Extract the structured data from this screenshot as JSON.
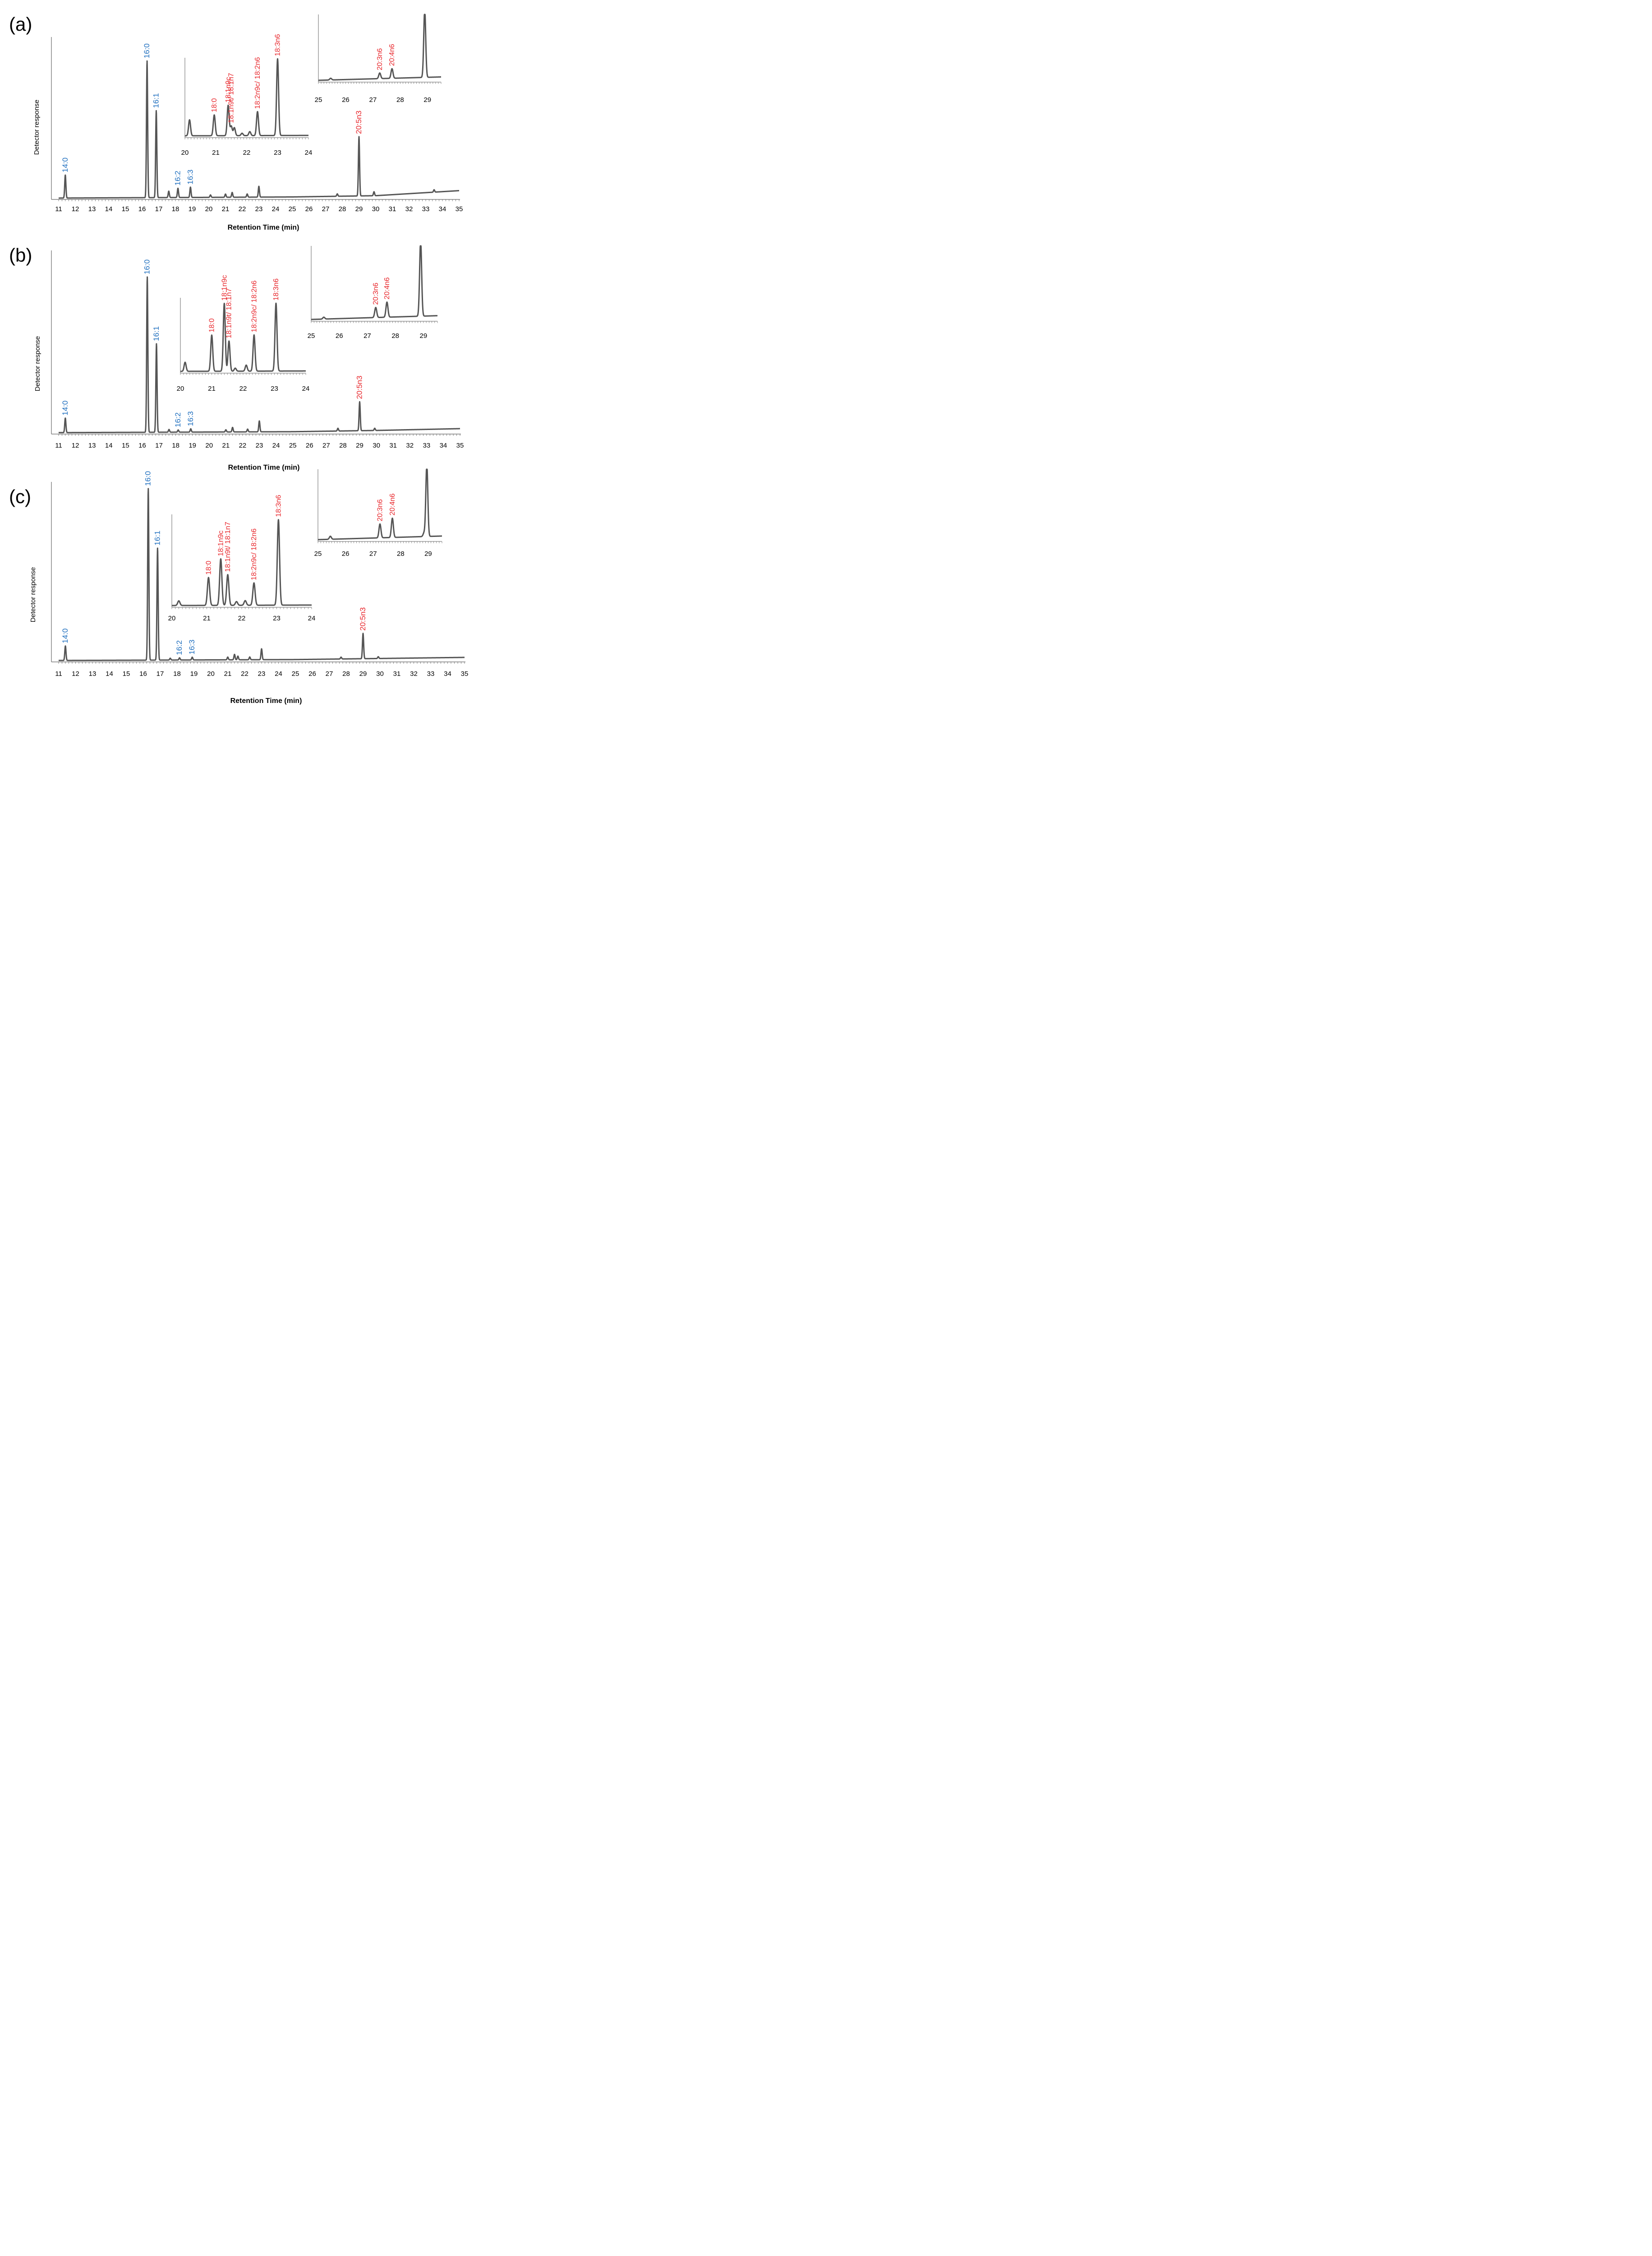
{
  "colors": {
    "trace": "#555555",
    "axis": "#666666",
    "saturated_label": "#1f6fbf",
    "unsaturated_label": "#e8262b",
    "text": "#000000"
  },
  "chart_data": [
    {
      "type": "line",
      "panel_label": "(a)",
      "xlabel": "Retention Time (min)",
      "ylabel": "Detector response",
      "xlim": [
        11,
        35
      ],
      "xticks": [
        "11",
        "12",
        "13",
        "14",
        "15",
        "16",
        "17",
        "18",
        "19",
        "20",
        "21",
        "22",
        "23",
        "24",
        "25",
        "26",
        "27",
        "28",
        "29",
        "30",
        "31",
        "32",
        "33",
        "34",
        "35"
      ],
      "baseline": [
        [
          11,
          0.3
        ],
        [
          25,
          1.0
        ],
        [
          30,
          1.8
        ],
        [
          35,
          5.0
        ]
      ],
      "peaks": [
        {
          "x": 11.4,
          "y": 14.5,
          "label": "14:0",
          "group": "saturated"
        },
        {
          "x": 16.3,
          "y": 86.5,
          "label": "16:0",
          "group": "saturated"
        },
        {
          "x": 16.85,
          "y": 55.0,
          "label": "16:1",
          "group": "saturated"
        },
        {
          "x": 17.6,
          "y": 4.0
        },
        {
          "x": 18.15,
          "y": 5.8,
          "label": "16:2",
          "group": "saturated"
        },
        {
          "x": 18.9,
          "y": 6.5,
          "label": "16:3",
          "group": "saturated"
        },
        {
          "x": 20.1,
          "y": 1.5
        },
        {
          "x": 21.0,
          "y": 2.0
        },
        {
          "x": 21.4,
          "y": 3.0
        },
        {
          "x": 22.3,
          "y": 2.0
        },
        {
          "x": 23.0,
          "y": 6.8
        },
        {
          "x": 27.7,
          "y": 1.5
        },
        {
          "x": 29.0,
          "y": 37.5,
          "label": "20:5n3",
          "group": "unsaturated"
        },
        {
          "x": 29.9,
          "y": 2.5
        },
        {
          "x": 33.5,
          "y": 1.5
        }
      ],
      "insets": [
        {
          "xlim": [
            20,
            24
          ],
          "xticks": [
            "20",
            "21",
            "22",
            "23",
            "24"
          ],
          "peaks": [
            {
              "x": 20.15,
              "y": 20
            },
            {
              "x": 20.95,
              "y": 26,
              "label": "18:0",
              "group": "unsaturated"
            },
            {
              "x": 21.4,
              "y": 38,
              "label": "18:1n9c",
              "group": "unsaturated"
            },
            {
              "x": 21.5,
              "y": 12,
              "label": "18:1n9t/ 18:1n7",
              "group": "unsaturated"
            },
            {
              "x": 21.6,
              "y": 10
            },
            {
              "x": 21.85,
              "y": 3
            },
            {
              "x": 22.1,
              "y": 5
            },
            {
              "x": 22.35,
              "y": 30,
              "label": "18:2n9c/ 18:2n6",
              "group": "unsaturated"
            },
            {
              "x": 23.0,
              "y": 96,
              "label": "18:3n6",
              "group": "unsaturated"
            }
          ]
        },
        {
          "xlim": [
            25,
            29.5
          ],
          "xticks": [
            "25",
            "26",
            "27",
            "28",
            "29"
          ],
          "peaks": [
            {
              "x": 25.45,
              "y": 3
            },
            {
              "x": 27.25,
              "y": 10,
              "label": "20:3n6",
              "group": "unsaturated"
            },
            {
              "x": 27.7,
              "y": 17,
              "label": "20:4n6",
              "group": "unsaturated"
            },
            {
              "x": 28.9,
              "y": 120
            }
          ]
        }
      ]
    },
    {
      "type": "line",
      "panel_label": "(b)",
      "xlabel": "Retention Time (min)",
      "ylabel": "Detector response",
      "xlim": [
        11,
        35
      ],
      "xticks": [
        "11",
        "12",
        "13",
        "14",
        "15",
        "16",
        "17",
        "18",
        "19",
        "20",
        "21",
        "22",
        "23",
        "24",
        "25",
        "26",
        "27",
        "28",
        "29",
        "30",
        "31",
        "32",
        "33",
        "34",
        "35"
      ],
      "baseline": [
        [
          11,
          0.3
        ],
        [
          25,
          0.8
        ],
        [
          30,
          1.5
        ],
        [
          35,
          2.5
        ]
      ],
      "peaks": [
        {
          "x": 11.4,
          "y": 8.0,
          "label": "14:0",
          "group": "saturated"
        },
        {
          "x": 16.3,
          "y": 86.0,
          "label": "16:0",
          "group": "saturated"
        },
        {
          "x": 16.85,
          "y": 49.0,
          "label": "16:1",
          "group": "saturated"
        },
        {
          "x": 17.6,
          "y": 1.5
        },
        {
          "x": 18.15,
          "y": 1.2,
          "label": "16:2",
          "group": "saturated"
        },
        {
          "x": 18.9,
          "y": 1.8,
          "label": "16:3",
          "group": "saturated"
        },
        {
          "x": 21.0,
          "y": 1.2
        },
        {
          "x": 21.4,
          "y": 2.5
        },
        {
          "x": 22.3,
          "y": 1.5
        },
        {
          "x": 23.0,
          "y": 6.0
        },
        {
          "x": 27.7,
          "y": 1.5
        },
        {
          "x": 29.0,
          "y": 16.0,
          "label": "20:5n3",
          "group": "unsaturated"
        },
        {
          "x": 29.9,
          "y": 1.2
        }
      ],
      "insets": [
        {
          "xlim": [
            20,
            24
          ],
          "xticks": [
            "20",
            "21",
            "22",
            "23",
            "24"
          ],
          "peaks": [
            {
              "x": 20.15,
              "y": 12
            },
            {
              "x": 21.0,
              "y": 48,
              "label": "18:0",
              "group": "unsaturated"
            },
            {
              "x": 21.4,
              "y": 90,
              "label": "18:1n9c",
              "group": "unsaturated"
            },
            {
              "x": 21.55,
              "y": 40,
              "label": "18:1n9t/ 18:1n7",
              "group": "unsaturated"
            },
            {
              "x": 21.75,
              "y": 4
            },
            {
              "x": 22.1,
              "y": 8
            },
            {
              "x": 22.35,
              "y": 48,
              "label": "18:2n9c/ 18:2n6",
              "group": "unsaturated"
            },
            {
              "x": 23.05,
              "y": 90,
              "label": "18:3n6",
              "group": "unsaturated"
            }
          ]
        },
        {
          "xlim": [
            25,
            29.5
          ],
          "xticks": [
            "25",
            "26",
            "27",
            "28",
            "29"
          ],
          "peaks": [
            {
              "x": 25.45,
              "y": 3
            },
            {
              "x": 27.3,
              "y": 16,
              "label": "20:3n6",
              "group": "unsaturated"
            },
            {
              "x": 27.7,
              "y": 24,
              "label": "20:4n6",
              "group": "unsaturated"
            },
            {
              "x": 28.9,
              "y": 120
            }
          ]
        }
      ]
    },
    {
      "type": "line",
      "panel_label": "(c)",
      "xlabel": "Retention Time (min)",
      "ylabel": "Detector response",
      "xlim": [
        11,
        35
      ],
      "xticks": [
        "11",
        "12",
        "13",
        "14",
        "15",
        "16",
        "17",
        "18",
        "19",
        "20",
        "21",
        "22",
        "23",
        "24",
        "25",
        "26",
        "27",
        "28",
        "29",
        "30",
        "31",
        "32",
        "33",
        "34",
        "35"
      ],
      "baseline": [
        [
          11,
          0.3
        ],
        [
          25,
          0.8
        ],
        [
          30,
          1.4
        ],
        [
          35,
          2.0
        ]
      ],
      "peaks": [
        {
          "x": 11.4,
          "y": 8.0,
          "label": "14:0",
          "group": "saturated"
        },
        {
          "x": 16.3,
          "y": 95.0,
          "label": "16:0",
          "group": "saturated"
        },
        {
          "x": 16.85,
          "y": 62.0,
          "label": "16:1",
          "group": "saturated"
        },
        {
          "x": 17.6,
          "y": 1.0
        },
        {
          "x": 18.15,
          "y": 1.2,
          "label": "16:2",
          "group": "saturated"
        },
        {
          "x": 18.9,
          "y": 1.5,
          "label": "16:3",
          "group": "saturated"
        },
        {
          "x": 21.0,
          "y": 1.5
        },
        {
          "x": 21.4,
          "y": 3.0
        },
        {
          "x": 21.6,
          "y": 2.0
        },
        {
          "x": 22.3,
          "y": 1.5
        },
        {
          "x": 23.0,
          "y": 6.0
        },
        {
          "x": 27.7,
          "y": 1.0
        },
        {
          "x": 29.0,
          "y": 14.0,
          "label": "20:5n3",
          "group": "unsaturated"
        },
        {
          "x": 29.9,
          "y": 1.0
        }
      ],
      "insets": [
        {
          "xlim": [
            20,
            24
          ],
          "xticks": [
            "20",
            "21",
            "22",
            "23",
            "24"
          ],
          "peaks": [
            {
              "x": 20.2,
              "y": 5
            },
            {
              "x": 21.05,
              "y": 30,
              "label": "18:0",
              "group": "unsaturated"
            },
            {
              "x": 21.4,
              "y": 50,
              "label": "18:1n9c",
              "group": "unsaturated"
            },
            {
              "x": 21.6,
              "y": 33,
              "label": "18:1n9t/ 18:1n7",
              "group": "unsaturated"
            },
            {
              "x": 21.85,
              "y": 4
            },
            {
              "x": 22.1,
              "y": 5
            },
            {
              "x": 22.35,
              "y": 24,
              "label": "18:2n9c/ 18:2n6",
              "group": "unsaturated"
            },
            {
              "x": 23.05,
              "y": 92,
              "label": "18:3n6",
              "group": "unsaturated"
            }
          ]
        },
        {
          "xlim": [
            25,
            29.5
          ],
          "xticks": [
            "25",
            "26",
            "27",
            "28",
            "29"
          ],
          "peaks": [
            {
              "x": 25.45,
              "y": 5
            },
            {
              "x": 27.25,
              "y": 23,
              "label": "20:3n6",
              "group": "unsaturated"
            },
            {
              "x": 27.7,
              "y": 32,
              "label": "20:4n6",
              "group": "unsaturated"
            },
            {
              "x": 28.85,
              "y": 6
            },
            {
              "x": 28.95,
              "y": 120
            }
          ]
        }
      ]
    }
  ]
}
